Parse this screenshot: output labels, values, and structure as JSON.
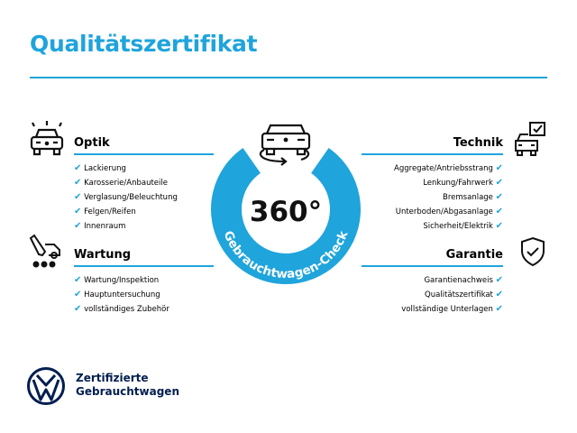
{
  "title": "Qualitätszertifikat",
  "accent_color": "#1fa4dc",
  "brand_color": "#001e50",
  "center": {
    "value": "360°",
    "ring_text": "Gebrauchtwagen-Check",
    "icon": "car-rotate-icon"
  },
  "sections": {
    "optik": {
      "title": "Optik",
      "icon": "car-lights-icon",
      "items": [
        "Lackierung",
        "Karosserie/Anbauteile",
        "Verglasung/Beleuchtung",
        "Felgen/Reifen",
        "Innenraum"
      ]
    },
    "wartung": {
      "title": "Wartung",
      "icon": "service-tool-icon",
      "items": [
        "Wartung/Inspektion",
        "Hauptuntersuchung",
        "vollständiges Zubehör"
      ]
    },
    "technik": {
      "title": "Technik",
      "icon": "car-checklist-icon",
      "items": [
        "Aggregate/Antriebsstrang",
        "Lenkung/Fahrwerk",
        "Bremsanlage",
        "Unterboden/Abgasanlage",
        "Sicherheit/Elektrik"
      ]
    },
    "garantie": {
      "title": "Garantie",
      "icon": "shield-check-icon",
      "items": [
        "Garantienachweis",
        "Qualitätszertifikat",
        "vollständige Unterlagen"
      ]
    }
  },
  "check_mark": "✔",
  "brand": {
    "line1": "Zertifizierte",
    "line2": "Gebrauchtwagen",
    "logo": "vw-logo"
  }
}
